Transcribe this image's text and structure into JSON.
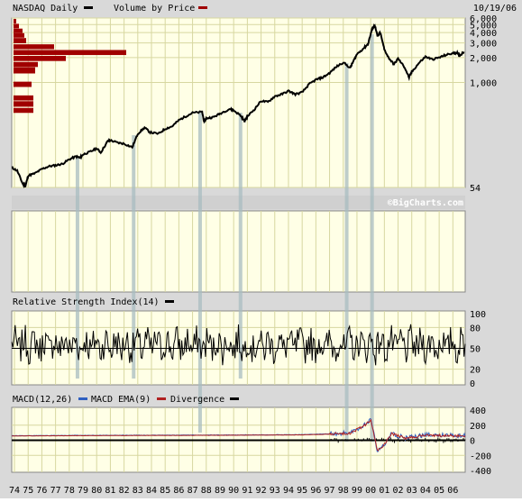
{
  "header": {
    "title": "NASDAQ Daily",
    "legend_volume": "Volume by Price",
    "date": "10/19/06"
  },
  "watermark": "©BigCharts.com",
  "colors": {
    "plot_bg": "#ffffe6",
    "grid": "#d7d7a0",
    "frame": "#c8c8c8",
    "price_line": "#000000",
    "volume_bar": "#a00000",
    "highlight": "#a8bcc0",
    "macd_line": "#3060c0",
    "ema_line": "#b02020",
    "divergence": "#000000"
  },
  "panels": {
    "rsi": {
      "title": "Relative Strength Index(14)",
      "ticks": [
        "100",
        "80",
        "50",
        "20",
        "0"
      ]
    },
    "macd": {
      "title": "MACD(12,26)",
      "ema_label": "MACD EMA(9)",
      "divergence_label": "Divergence",
      "ticks": [
        "400",
        "200",
        "0",
        "-200",
        "-400"
      ]
    }
  },
  "chart_data": [
    {
      "type": "line",
      "title": "NASDAQ Daily",
      "y_scale": "log",
      "ylim": [
        54,
        6000
      ],
      "y_ticks": [
        "6,000",
        "5,000",
        "4,000",
        "3,000",
        "2,000",
        "1,000",
        "54"
      ],
      "y_tick_values": [
        6000,
        5000,
        4000,
        3000,
        2000,
        1000,
        54
      ],
      "x_tick_labels": [
        "74",
        "75",
        "76",
        "77",
        "78",
        "79",
        "80",
        "81",
        "82",
        "83",
        "84",
        "85",
        "86",
        "87",
        "88",
        "89",
        "90",
        "91",
        "92",
        "93",
        "94",
        "95",
        "96",
        "97",
        "98",
        "99",
        "00",
        "01",
        "02",
        "03",
        "04",
        "05",
        "06"
      ],
      "x_range": [
        1973.8,
        2006.9
      ],
      "series": [
        {
          "name": "NASDAQ Daily",
          "x": [
            1973.8,
            1974.2,
            1974.6,
            1974.8,
            1975.0,
            1975.5,
            1976.0,
            1976.5,
            1977.0,
            1977.5,
            1978.0,
            1978.5,
            1978.8,
            1979.0,
            1979.5,
            1980.0,
            1980.3,
            1980.8,
            1981.0,
            1981.5,
            1982.0,
            1982.6,
            1983.0,
            1983.5,
            1983.9,
            1984.5,
            1985.0,
            1985.5,
            1986.0,
            1986.5,
            1987.0,
            1987.7,
            1987.85,
            1988.0,
            1988.5,
            1989.0,
            1989.7,
            1990.0,
            1990.5,
            1990.8,
            1991.0,
            1991.5,
            1992.0,
            1992.5,
            1993.0,
            1993.5,
            1994.0,
            1994.5,
            1995.0,
            1995.5,
            1996.0,
            1996.5,
            1997.0,
            1997.5,
            1998.0,
            1998.5,
            1998.7,
            1999.0,
            1999.5,
            1999.8,
            2000.1,
            2000.3,
            2000.5,
            2000.7,
            2001.0,
            2001.3,
            2001.7,
            2002.0,
            2002.5,
            2002.8,
            2003.0,
            2003.5,
            2004.0,
            2004.5,
            2005.0,
            2005.5,
            2006.0,
            2006.3,
            2006.5,
            2006.8
          ],
          "y": [
            94,
            86,
            60,
            56,
            75,
            80,
            90,
            97,
            100,
            104,
            118,
            128,
            123,
            135,
            145,
            160,
            143,
            195,
            200,
            188,
            182,
            165,
            240,
            285,
            250,
            240,
            275,
            295,
            350,
            390,
            430,
            440,
            330,
            370,
            380,
            420,
            480,
            460,
            400,
            340,
            390,
            470,
            600,
            580,
            680,
            720,
            790,
            720,
            760,
            950,
            1080,
            1150,
            1300,
            1550,
            1750,
            1500,
            1750,
            2200,
            2600,
            2900,
            4400,
            4900,
            3600,
            4000,
            2500,
            2000,
            1650,
            1950,
            1500,
            1150,
            1340,
            1700,
            2050,
            1900,
            2000,
            2150,
            2250,
            2300,
            2100,
            2350
          ]
        },
        {
          "name": "Volume by Price",
          "price_levels": [
            5500,
            4800,
            4200,
            3700,
            3200,
            2700,
            2300,
            1950,
            1650,
            1400,
            1150,
            950,
            800,
            650,
            550,
            460
          ],
          "volume": [
            3,
            6,
            10,
            12,
            14,
            45,
            125,
            58,
            27,
            24,
            0,
            20,
            0,
            22,
            22,
            22
          ]
        }
      ]
    },
    {
      "type": "line",
      "title": "Relative Strength Index(14)",
      "ylim": [
        0,
        100
      ],
      "y_ticks": [
        100,
        80,
        50,
        20,
        0
      ],
      "series": [
        {
          "name": "Relative Strength Index(14)",
          "mean": 55,
          "amplitude": 22,
          "samples": 400,
          "seed": 7
        }
      ]
    },
    {
      "type": "line",
      "title": "MACD(12,26)",
      "ylim": [
        -400,
        400
      ],
      "y_ticks": [
        400,
        200,
        0,
        -200,
        -400
      ],
      "series": [
        {
          "name": "MACD(12,26)",
          "x": [
            1973.8,
            1980.0,
            1990.0,
            1995.0,
            1997.0,
            1998.5,
            1999.5,
            2000.0,
            2000.2,
            2000.5,
            2001.0,
            2001.5,
            2002.5,
            2004.0,
            2006.9
          ],
          "y": [
            60,
            65,
            70,
            75,
            85,
            100,
            200,
            280,
            120,
            -150,
            -60,
            90,
            30,
            70,
            60
          ]
        },
        {
          "name": "MACD EMA(9)"
        },
        {
          "name": "Divergence"
        }
      ]
    }
  ],
  "highlight_lines_x": [
    1978.6,
    1982.7,
    1987.55,
    1990.5,
    1998.25,
    2000.1
  ]
}
